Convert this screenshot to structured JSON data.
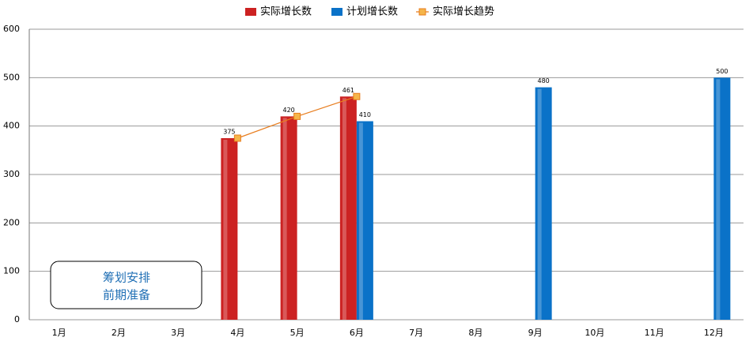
{
  "chart_data": {
    "type": "bar",
    "categories": [
      "1月",
      "2月",
      "3月",
      "4月",
      "5月",
      "6月",
      "7月",
      "8月",
      "9月",
      "10月",
      "11月",
      "12月"
    ],
    "series": [
      {
        "name": "实际增长数",
        "color": "#cc2222",
        "type": "bar",
        "values": [
          null,
          null,
          null,
          375,
          420,
          461,
          null,
          null,
          null,
          null,
          null,
          null
        ]
      },
      {
        "name": "计划增长数",
        "color": "#0a72c8",
        "type": "bar",
        "values": [
          null,
          null,
          null,
          null,
          null,
          410,
          null,
          null,
          480,
          null,
          null,
          500
        ]
      },
      {
        "name": "实际增长趋势",
        "color": "#e87d1e",
        "type": "line",
        "values": [
          null,
          null,
          null,
          375,
          420,
          461,
          null,
          null,
          null,
          null,
          null,
          null
        ]
      }
    ],
    "ylim": [
      0,
      600
    ],
    "yticks": [
      0,
      100,
      200,
      300,
      400,
      500,
      600
    ],
    "grid": true,
    "annotation": [
      "筹划安排",
      "前期准备"
    ]
  }
}
